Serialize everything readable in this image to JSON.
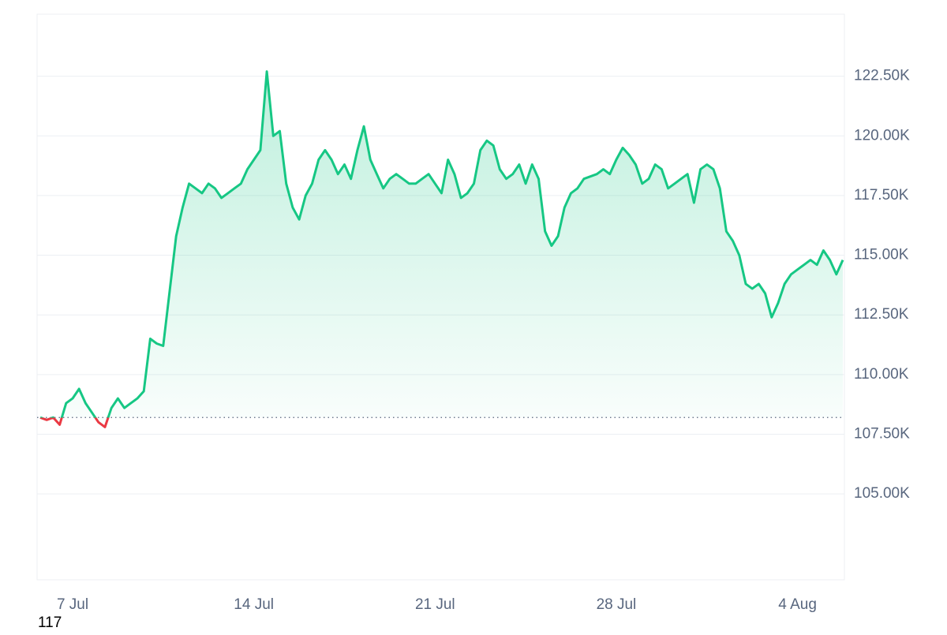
{
  "chart_data": {
    "type": "line",
    "categories": [
      null,
      null,
      null,
      null,
      null,
      "7 Jul",
      null,
      null,
      null,
      null,
      null,
      null,
      null,
      null,
      null,
      null,
      null,
      null,
      null,
      null,
      null,
      null,
      null,
      null,
      null,
      null,
      null,
      null,
      null,
      null,
      null,
      null,
      null,
      "14 Jul",
      null,
      null,
      null,
      null,
      null,
      null,
      null,
      null,
      null,
      null,
      null,
      null,
      null,
      null,
      null,
      null,
      null,
      null,
      null,
      null,
      null,
      null,
      null,
      null,
      null,
      null,
      null,
      "21 Jul",
      null,
      null,
      null,
      null,
      null,
      null,
      null,
      null,
      null,
      null,
      null,
      null,
      null,
      null,
      null,
      null,
      null,
      null,
      null,
      null,
      null,
      null,
      null,
      null,
      null,
      null,
      null,
      "28 Jul",
      null,
      null,
      null,
      null,
      null,
      null,
      null,
      null,
      null,
      null,
      null,
      null,
      null,
      null,
      null,
      null,
      null,
      null,
      null,
      null,
      null,
      null,
      null,
      null,
      null,
      null,
      null,
      "4 Aug",
      null,
      null,
      null,
      null,
      null,
      null,
      null
    ],
    "values": [
      108200,
      108100,
      108200,
      107900,
      108800,
      109000,
      109400,
      108800,
      108400,
      108000,
      107800,
      108600,
      109000,
      108600,
      108800,
      109000,
      109300,
      111500,
      111300,
      111200,
      113500,
      115800,
      117000,
      118000,
      117800,
      117600,
      118000,
      117800,
      117400,
      117600,
      117800,
      118000,
      118600,
      119000,
      119400,
      122700,
      120000,
      120200,
      118000,
      117000,
      116500,
      117500,
      118000,
      119000,
      119400,
      119000,
      118400,
      118800,
      118200,
      119400,
      120400,
      119000,
      118400,
      117800,
      118200,
      118400,
      118200,
      118000,
      118000,
      118200,
      118400,
      118000,
      117600,
      119000,
      118400,
      117400,
      117600,
      118000,
      119400,
      119800,
      119600,
      118600,
      118200,
      118400,
      118800,
      118000,
      118800,
      118200,
      116000,
      115400,
      115800,
      117000,
      117600,
      117800,
      118200,
      118300,
      118400,
      118600,
      118400,
      119000,
      119500,
      119200,
      118800,
      118000,
      118200,
      118800,
      118600,
      117800,
      118000,
      118200,
      118400,
      117200,
      118600,
      118800,
      118600,
      117800,
      116000,
      115600,
      115000,
      113800,
      113600,
      113800,
      113400,
      112400,
      113000,
      113800,
      114200,
      114400,
      114600,
      114800,
      114600,
      115200,
      114800,
      114200,
      114800
    ],
    "color": "#16c784",
    "down_color": "#ea3943",
    "ylim": [
      101400,
      125100
    ],
    "yticks": [
      {
        "value": 105000,
        "label": "105.00K"
      },
      {
        "value": 107500,
        "label": "107.50K"
      },
      {
        "value": 110000,
        "label": "110.00K"
      },
      {
        "value": 112500,
        "label": "112.50K"
      },
      {
        "value": 115000,
        "label": "115.00K"
      },
      {
        "value": 117500,
        "label": "117.50K"
      },
      {
        "value": 120000,
        "label": "120.00K"
      },
      {
        "value": 122500,
        "label": "122.50K"
      }
    ],
    "grid": true,
    "footnote": "117"
  }
}
